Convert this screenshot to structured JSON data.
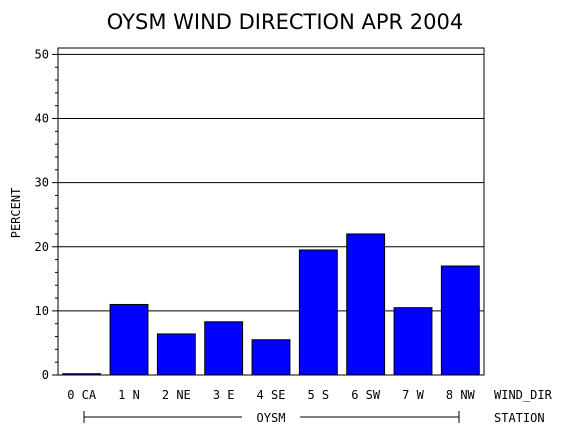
{
  "chart_data": {
    "type": "bar",
    "title": "OYSM WIND DIRECTION APR 2004",
    "ylabel": "PERCENT",
    "xlabel": "WIND_DIR",
    "group_axis_label": "STATION",
    "group_name": "OYSM",
    "categories": [
      "0 CA",
      "1 N",
      "2 NE",
      "3 E",
      "4 SE",
      "5 S",
      "6 SW",
      "7 W",
      "8 NW"
    ],
    "values": [
      0.2,
      11.0,
      6.4,
      8.3,
      5.5,
      19.5,
      22.0,
      10.5,
      17.0
    ],
    "ylim": [
      0,
      51
    ],
    "yticks": [
      0,
      10,
      20,
      30,
      40,
      50
    ],
    "grid": true,
    "bar_color": "#0000ff"
  }
}
